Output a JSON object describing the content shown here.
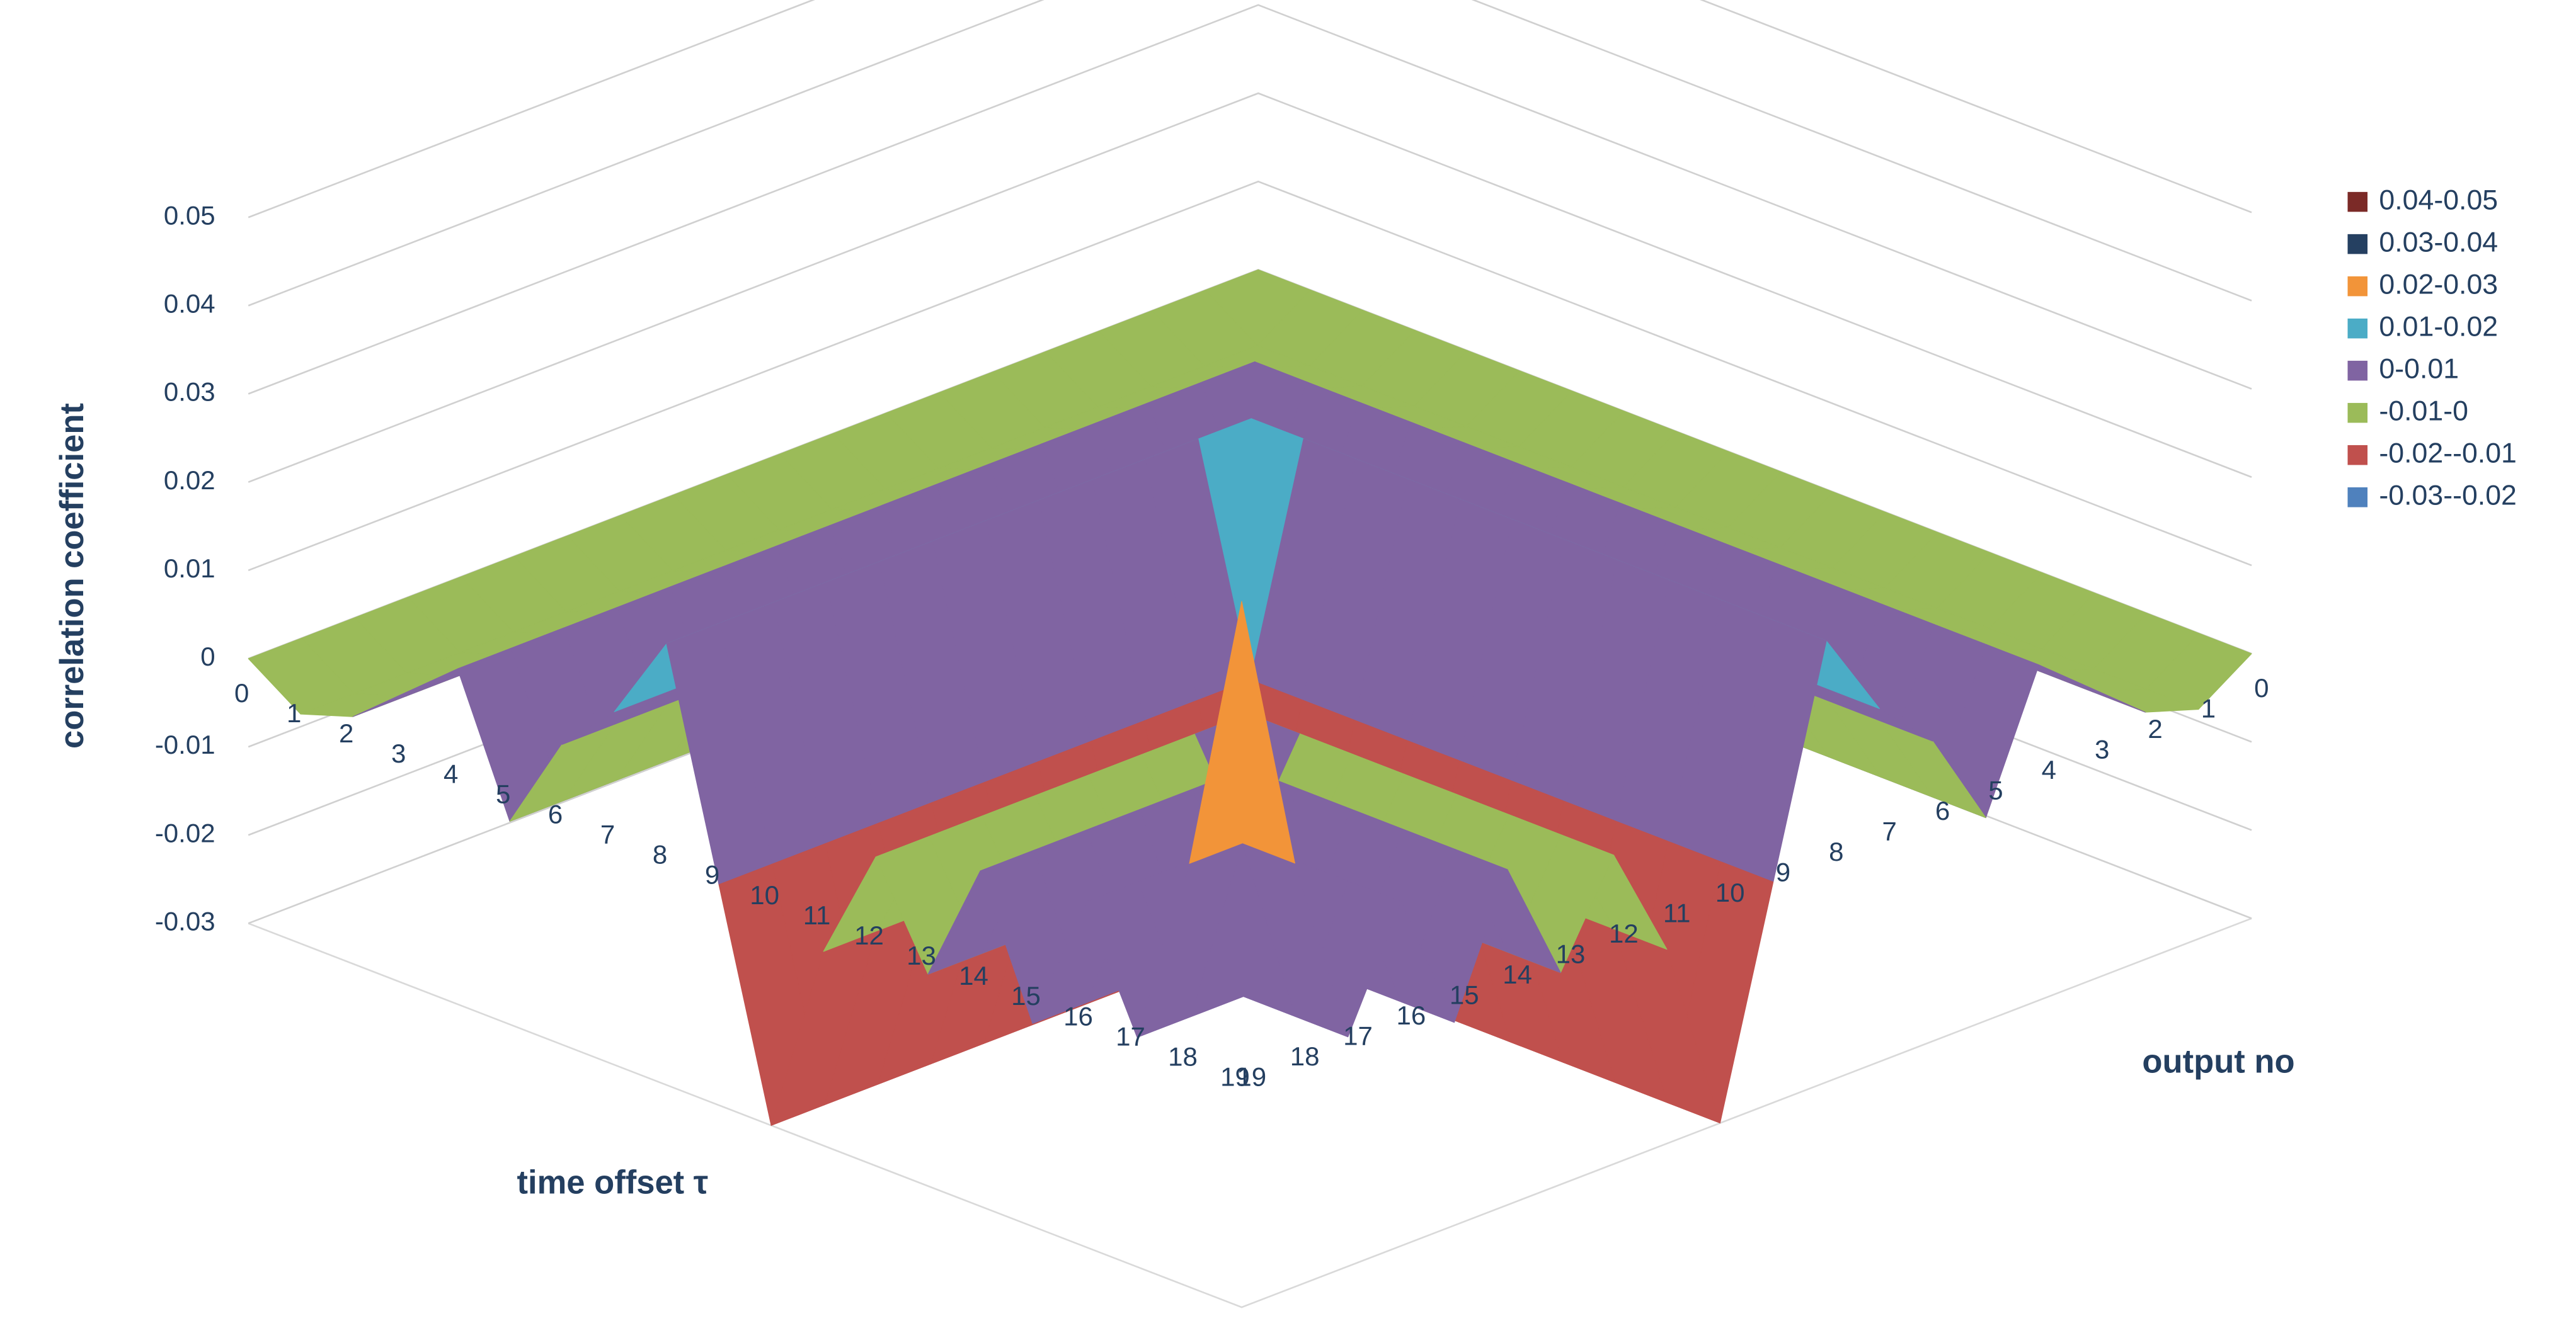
{
  "chart_data": {
    "type": "surface",
    "xlabel": "time offset τ",
    "ylabel": "output no",
    "zlabel": "correlation coefficient",
    "x": [
      0,
      1,
      2,
      3,
      4,
      5,
      6,
      7,
      8,
      9,
      10,
      11,
      12,
      13,
      14,
      15,
      16,
      17,
      18,
      19
    ],
    "y": [
      0,
      1,
      2,
      3,
      4,
      5,
      6,
      7,
      8,
      9,
      10,
      11,
      12,
      13,
      14,
      15,
      16,
      17,
      18,
      19
    ],
    "zlim": [
      -0.03,
      0.05
    ],
    "zticks": [
      -0.03,
      -0.02,
      -0.01,
      0,
      0.01,
      0.02,
      0.03,
      0.04,
      0.05
    ],
    "grid": true,
    "legend_position": "right",
    "legend": [
      {
        "label": "0.04-0.05",
        "range": [
          0.04,
          0.05
        ],
        "color": "#7b2a27"
      },
      {
        "label": "0.03-0.04",
        "range": [
          0.03,
          0.04
        ],
        "color": "#254061"
      },
      {
        "label": "0.02-0.03",
        "range": [
          0.02,
          0.03
        ],
        "color": "#f29439"
      },
      {
        "label": "0.01-0.02",
        "range": [
          0.01,
          0.02
        ],
        "color": "#4bacc6"
      },
      {
        "label": "0-0.01",
        "range": [
          0,
          0.01
        ],
        "color": "#8064a2"
      },
      {
        "label": "-0.01-0",
        "range": [
          -0.01,
          0
        ],
        "color": "#9bbb59"
      },
      {
        "label": "-0.02--0.01",
        "range": [
          -0.02,
          -0.01
        ],
        "color": "#c0504d"
      },
      {
        "label": "-0.03--0.02",
        "range": [
          -0.03,
          -0.02
        ],
        "color": "#4f81bd"
      }
    ],
    "z": [
      [
        0,
        0,
        0,
        0,
        0,
        0,
        0,
        0,
        0,
        0,
        0,
        0,
        0,
        0,
        0,
        0,
        0,
        0,
        0,
        0
      ],
      [
        0,
        -0.004,
        -0.004,
        -0.004,
        -0.004,
        -0.004,
        -0.004,
        -0.004,
        -0.004,
        -0.004,
        -0.004,
        -0.004,
        -0.004,
        -0.004,
        -0.004,
        -0.004,
        -0.004,
        -0.004,
        -0.004,
        -0.004
      ],
      [
        0,
        -0.004,
        -0.002,
        -0.002,
        -0.002,
        -0.002,
        -0.002,
        -0.002,
        -0.002,
        -0.002,
        -0.002,
        -0.002,
        -0.002,
        -0.002,
        -0.002,
        -0.002,
        -0.002,
        -0.002,
        -0.002,
        -0.002
      ],
      [
        0,
        -0.004,
        -0.002,
        0.003,
        0.003,
        0.003,
        0.003,
        0.003,
        0.003,
        0.003,
        0.003,
        0.003,
        0.003,
        0.003,
        0.003,
        0.003,
        0.003,
        0.003,
        0.003,
        0.003
      ],
      [
        0,
        -0.004,
        -0.002,
        0.003,
        0.008,
        0.008,
        0.008,
        0.008,
        0.008,
        0.008,
        0.008,
        0.008,
        0.008,
        0.008,
        0.008,
        0.008,
        0.008,
        0.008,
        0.008,
        0.008
      ],
      [
        0,
        -0.004,
        -0.002,
        0.003,
        0.008,
        -0.007,
        -0.007,
        -0.007,
        -0.007,
        -0.007,
        -0.007,
        -0.007,
        -0.007,
        -0.007,
        -0.007,
        -0.007,
        -0.007,
        -0.007,
        -0.007,
        -0.007
      ],
      [
        0,
        -0.004,
        -0.002,
        0.003,
        0.008,
        -0.007,
        0.004,
        0.004,
        0.004,
        0.004,
        0.004,
        0.004,
        0.004,
        0.004,
        0.004,
        0.004,
        0.004,
        0.004,
        0.004,
        0.004
      ],
      [
        0,
        -0.004,
        -0.002,
        0.003,
        0.008,
        -0.007,
        0.004,
        0.01,
        0.01,
        0.01,
        0.01,
        0.01,
        0.01,
        0.01,
        0.01,
        0.01,
        0.01,
        0.01,
        0.01,
        0.01
      ],
      [
        0,
        -0.004,
        -0.002,
        0.003,
        0.008,
        -0.007,
        0.004,
        0.01,
        0.02,
        0.02,
        0.02,
        0.02,
        0.02,
        0.02,
        0.02,
        0.02,
        0.02,
        0.02,
        0.02,
        0.02
      ],
      [
        0,
        -0.004,
        -0.002,
        0.003,
        0.008,
        -0.007,
        0.004,
        0.01,
        0.02,
        -0.005,
        -0.005,
        -0.005,
        -0.005,
        -0.005,
        -0.005,
        -0.005,
        -0.005,
        -0.005,
        -0.005,
        -0.005
      ],
      [
        0,
        -0.004,
        -0.002,
        0.003,
        0.008,
        -0.007,
        0.004,
        0.01,
        0.02,
        -0.005,
        -0.03,
        -0.03,
        -0.03,
        -0.03,
        -0.03,
        -0.03,
        -0.03,
        -0.03,
        -0.03,
        -0.03
      ],
      [
        0,
        -0.004,
        -0.002,
        0.003,
        0.008,
        -0.007,
        0.004,
        0.01,
        0.02,
        -0.005,
        -0.03,
        -0.008,
        -0.008,
        -0.008,
        -0.008,
        -0.008,
        -0.008,
        -0.008,
        -0.008,
        -0.008
      ],
      [
        0,
        -0.004,
        -0.002,
        0.003,
        0.008,
        -0.007,
        0.004,
        0.01,
        0.02,
        -0.005,
        -0.03,
        -0.008,
        0.005,
        0.005,
        0.005,
        0.005,
        0.005,
        0.005,
        0.005,
        0.005
      ],
      [
        0,
        -0.004,
        -0.002,
        0.003,
        0.008,
        -0.007,
        0.004,
        0.01,
        0.02,
        -0.005,
        -0.03,
        -0.008,
        0.005,
        -0.006,
        -0.006,
        -0.006,
        -0.006,
        -0.006,
        -0.006,
        -0.006
      ],
      [
        0,
        -0.004,
        -0.002,
        0.003,
        0.008,
        -0.007,
        0.004,
        0.01,
        0.02,
        -0.005,
        -0.03,
        -0.008,
        0.005,
        -0.006,
        0.008,
        0.008,
        0.008,
        0.008,
        0.008,
        0.008
      ],
      [
        0,
        -0.004,
        -0.002,
        0.003,
        0.008,
        -0.007,
        0.004,
        0.01,
        0.02,
        -0.005,
        -0.03,
        -0.008,
        0.005,
        -0.006,
        0.008,
        -0.007,
        -0.007,
        -0.007,
        -0.007,
        -0.007
      ],
      [
        0,
        -0.004,
        -0.002,
        0.003,
        0.008,
        -0.007,
        0.004,
        0.01,
        0.02,
        -0.005,
        -0.03,
        -0.008,
        0.005,
        -0.006,
        0.008,
        -0.007,
        0.009,
        0.009,
        0.009,
        0.009
      ],
      [
        0,
        -0.004,
        -0.002,
        0.003,
        0.008,
        -0.007,
        0.004,
        0.01,
        0.02,
        -0.005,
        -0.03,
        -0.008,
        0.005,
        -0.006,
        0.008,
        -0.007,
        0.009,
        -0.004,
        -0.004,
        -0.004
      ],
      [
        0,
        -0.004,
        -0.002,
        0.003,
        0.008,
        -0.007,
        0.004,
        0.01,
        0.02,
        -0.005,
        -0.03,
        -0.008,
        0.005,
        -0.006,
        0.008,
        -0.007,
        0.009,
        -0.004,
        0.018,
        0.018
      ],
      [
        0,
        -0.004,
        -0.002,
        0.003,
        0.008,
        -0.007,
        0.004,
        0.01,
        0.02,
        -0.005,
        -0.03,
        -0.008,
        0.005,
        -0.006,
        0.008,
        -0.007,
        0.009,
        -0.004,
        0.018,
        0.05
      ]
    ]
  }
}
